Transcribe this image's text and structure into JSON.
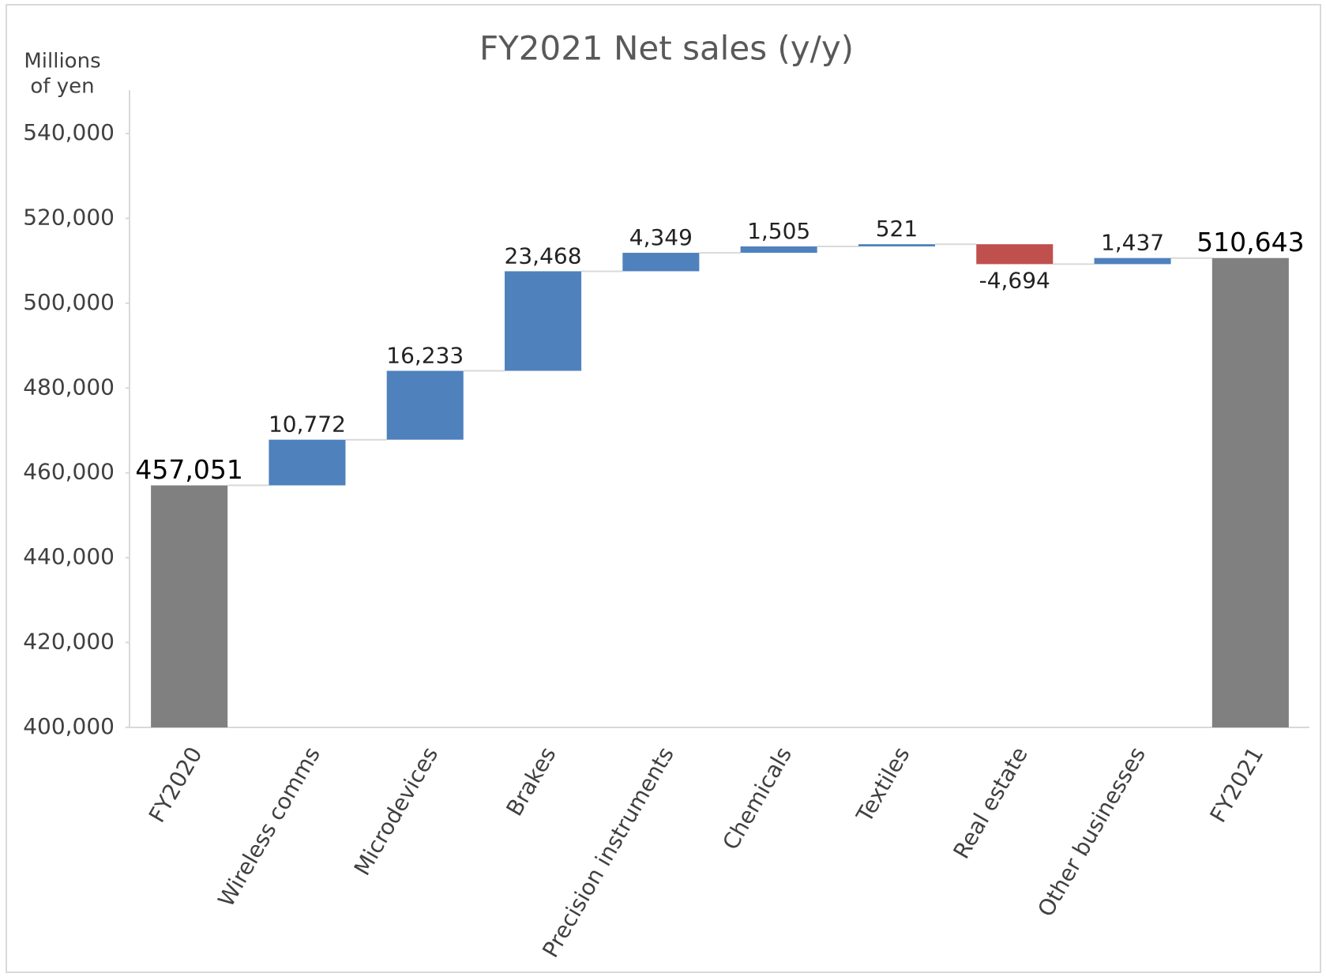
{
  "chart_data": {
    "type": "waterfall",
    "title": "FY2021 Net sales (y/y)",
    "y_label": [
      "Millions",
      "of yen"
    ],
    "categories": [
      "FY2020",
      "Wireless comms",
      "Microdevices",
      "Brakes",
      "Precision instruments",
      "Chemicals",
      "Textiles",
      "Real estate",
      "Other businesses",
      "FY2021"
    ],
    "values": [
      457051,
      10772,
      16233,
      23468,
      4349,
      1505,
      521,
      -4694,
      1437,
      510643
    ],
    "value_labels": [
      "457,051",
      "10,772",
      "16,233",
      "23,468",
      "4,349",
      "1,505",
      "521",
      "-4,694",
      "1,437",
      "510,643"
    ],
    "measure": [
      "total",
      "relative",
      "relative",
      "relative",
      "relative",
      "relative",
      "relative",
      "relative",
      "relative",
      "total"
    ],
    "increase_color": "#4f81bd",
    "decrease_color": "#c0504d",
    "total_color": "#808080",
    "ylim": [
      400000,
      540000
    ],
    "yticks": [
      {
        "value": 400000,
        "label": "400,000"
      },
      {
        "value": 420000,
        "label": "420,000"
      },
      {
        "value": 440000,
        "label": "440,000"
      },
      {
        "value": 460000,
        "label": "460,000"
      },
      {
        "value": 480000,
        "label": "480,000"
      },
      {
        "value": 500000,
        "label": "500,000"
      },
      {
        "value": 520000,
        "label": "520,000"
      },
      {
        "value": 540000,
        "label": "540,000"
      }
    ],
    "grid": false
  }
}
